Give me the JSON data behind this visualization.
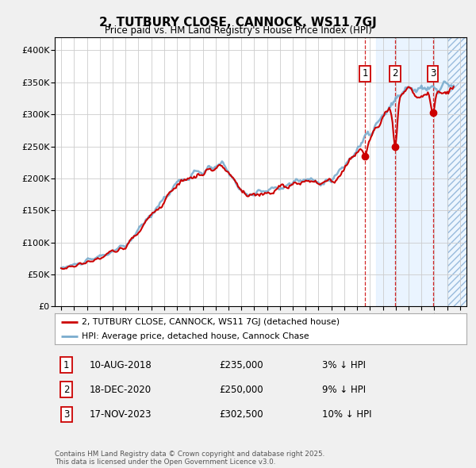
{
  "title": "2, TUTBURY CLOSE, CANNOCK, WS11 7GJ",
  "subtitle": "Price paid vs. HM Land Registry's House Price Index (HPI)",
  "red_label": "2, TUTBURY CLOSE, CANNOCK, WS11 7GJ (detached house)",
  "blue_label": "HPI: Average price, detached house, Cannock Chase",
  "transactions": [
    {
      "num": 1,
      "date": "10-AUG-2018",
      "price": 235000,
      "pct": "3%",
      "dir": "↓",
      "x_year": 2018.61
    },
    {
      "num": 2,
      "date": "18-DEC-2020",
      "price": 250000,
      "pct": "9%",
      "dir": "↓",
      "x_year": 2020.96
    },
    {
      "num": 3,
      "date": "17-NOV-2023",
      "price": 302500,
      "pct": "10%",
      "dir": "↓",
      "x_year": 2023.88
    }
  ],
  "footer": "Contains HM Land Registry data © Crown copyright and database right 2025.\nThis data is licensed under the Open Government Licence v3.0.",
  "ylim": [
    0,
    420000
  ],
  "xlim_start": 1994.5,
  "xlim_end": 2026.5,
  "bg_color": "#f0f0f0",
  "plot_bg": "#ffffff",
  "grid_color": "#cccccc",
  "red_color": "#cc0000",
  "blue_color": "#7aacce",
  "shade_color": "#ddeeff",
  "hatch_start": 2025.0
}
